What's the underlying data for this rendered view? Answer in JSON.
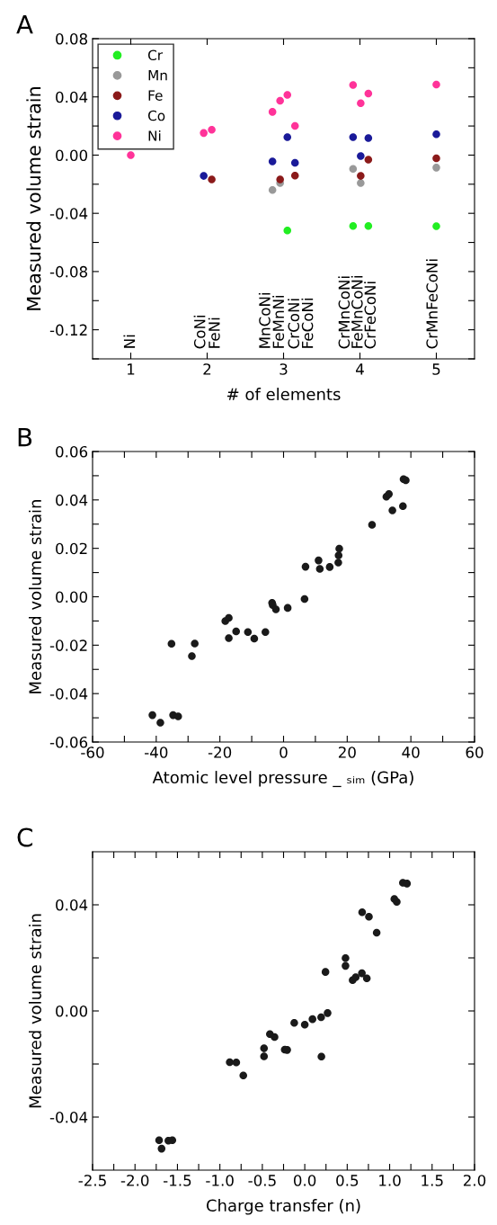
{
  "chart_data": [
    {
      "type": "scatter",
      "title": "A",
      "xlabel": "# of elements",
      "ylabel": "Measured volume strain",
      "marker": "circle",
      "grid": false,
      "legend": "top left",
      "xlim": [
        0.5,
        5.5
      ],
      "xticks": [
        1,
        2,
        3,
        4,
        5
      ],
      "ylim": [
        -0.14,
        0.08
      ],
      "yticks": [
        {
          "value": -0.14,
          "label": null
        },
        {
          "value": -0.12,
          "label": "-0.12"
        },
        {
          "value": -0.1,
          "label": null
        },
        {
          "value": -0.08,
          "label": "-0.08"
        },
        {
          "value": -0.06,
          "label": null
        },
        {
          "value": -0.04,
          "label": "-0.04"
        },
        {
          "value": -0.02,
          "label": null
        },
        {
          "value": 0.0,
          "label": "0.00"
        },
        {
          "value": 0.02,
          "label": null
        },
        {
          "value": 0.04,
          "label": "0.04"
        },
        {
          "value": 0.06,
          "label": null
        },
        {
          "value": 0.08,
          "label": "0.08"
        }
      ],
      "series": [
        {
          "name": "Cr",
          "color": "#22ee22",
          "x": [
            3.05,
            3.91,
            4.11,
            5.0
          ],
          "values": [
            -0.0518,
            -0.0487,
            -0.0487,
            -0.0489
          ]
        },
        {
          "name": "Mn",
          "color": "#999999",
          "x": [
            2.855,
            2.955,
            3.91,
            4.01,
            5.0
          ],
          "values": [
            -0.024,
            -0.0192,
            -0.0095,
            -0.0192,
            -0.0086
          ]
        },
        {
          "name": "Fe",
          "color": "#8b1a1a",
          "x": [
            2.06,
            2.955,
            3.15,
            4.01,
            4.11,
            5.0
          ],
          "values": [
            -0.0167,
            -0.0167,
            -0.0141,
            -0.0143,
            -0.0031,
            -0.0022
          ]
        },
        {
          "name": "Co",
          "color": "#1a1a99",
          "x": [
            1.955,
            2.855,
            3.05,
            3.15,
            3.91,
            4.01,
            4.11,
            5.0
          ],
          "values": [
            -0.0143,
            -0.0044,
            0.0123,
            -0.0053,
            0.0123,
            -0.0007,
            0.0117,
            0.0143
          ]
        },
        {
          "name": "Ni",
          "color": "#ff3399",
          "x": [
            1.0,
            1.955,
            2.06,
            2.855,
            2.955,
            3.05,
            3.15,
            3.91,
            4.01,
            4.11,
            5.0
          ],
          "values": [
            0.0,
            0.0152,
            0.0174,
            0.0297,
            0.0374,
            0.0414,
            0.02,
            0.0482,
            0.0357,
            0.0423,
            0.0485
          ]
        }
      ],
      "annotations": [
        "Ni",
        "CoNi",
        "FeNi",
        "MnCoNi",
        "FeMnNi",
        "CrCoNi",
        "FeCoNi",
        "CrMnCoNi",
        "FeMnCoNi",
        "CrFeCoNi",
        "CrMnFeCoNi"
      ]
    },
    {
      "type": "scatter",
      "title": "B",
      "xlabel": "Atomic level pressure _ ₛᵢₘ (GPa)",
      "ylabel": "Measured volume strain",
      "marker": "circle",
      "grid": false,
      "xlim": [
        -60,
        60
      ],
      "xticks": [
        -60,
        {
          "value": -50,
          "label": null
        },
        -40,
        {
          "value": -30,
          "label": null
        },
        -20,
        {
          "value": -10,
          "label": null
        },
        0,
        {
          "value": 10,
          "label": null
        },
        20,
        {
          "value": 30,
          "label": null
        },
        40,
        {
          "value": 50,
          "label": null
        },
        60
      ],
      "ylim": [
        -0.06,
        0.06
      ],
      "yticks": [
        {
          "value": -0.06,
          "label": "-0.06"
        },
        {
          "value": -0.05,
          "label": null
        },
        {
          "value": -0.04,
          "label": "-0.04"
        },
        {
          "value": -0.03,
          "label": null
        },
        {
          "value": -0.02,
          "label": "-0.02"
        },
        {
          "value": -0.01,
          "label": null
        },
        {
          "value": 0.0,
          "label": "0.00"
        },
        {
          "value": 0.01,
          "label": null
        },
        {
          "value": 0.02,
          "label": "0.02"
        },
        {
          "value": 0.03,
          "label": null
        },
        {
          "value": 0.04,
          "label": "0.04"
        },
        {
          "value": 0.05,
          "label": null
        },
        {
          "value": 0.06,
          "label": "0.06"
        }
      ],
      "series": [
        {
          "color": "#1a1a1a",
          "x": [
            -41.2,
            -38.7,
            -35.2,
            -34.7,
            -33.1,
            -28.8,
            -27.9,
            -18.3,
            -17.2,
            -17.2,
            -14.9,
            -11.2,
            -9.2,
            -5.7,
            -3.6,
            -3.4,
            -2.4,
            1.3,
            6.6,
            6.9,
            11.0,
            11.4,
            14.5,
            17.2,
            17.3,
            17.5,
            27.8,
            32.3,
            33.1,
            34.2,
            37.5,
            37.7,
            38.4
          ],
          "values": [
            -0.0489,
            -0.052,
            -0.0194,
            -0.0489,
            -0.0494,
            -0.0245,
            -0.0193,
            -0.01,
            -0.0087,
            -0.0171,
            -0.0143,
            -0.0146,
            -0.0173,
            -0.0146,
            -0.0025,
            -0.0034,
            -0.0052,
            -0.0046,
            -0.0009,
            0.0124,
            0.015,
            0.0115,
            0.0123,
            0.0141,
            0.0171,
            0.0199,
            0.0297,
            0.0413,
            0.0424,
            0.0357,
            0.0374,
            0.0486,
            0.0481
          ]
        }
      ]
    },
    {
      "type": "scatter",
      "title": "C",
      "xlabel": "Charge transfer (n)",
      "ylabel": "Measured volume strain",
      "marker": "circle",
      "grid": false,
      "xlim": [
        -2.5,
        2.0
      ],
      "xticks": [
        {
          "value": -2.5,
          "label": "-2.5"
        },
        {
          "value": -2.25,
          "label": null
        },
        {
          "value": -2.0,
          "label": "-2.0"
        },
        {
          "value": -1.75,
          "label": null
        },
        {
          "value": -1.5,
          "label": "-1.5"
        },
        {
          "value": -1.25,
          "label": null
        },
        {
          "value": -1.0,
          "label": "-1.0"
        },
        {
          "value": -0.75,
          "label": null
        },
        {
          "value": -0.5,
          "label": "-0.5"
        },
        {
          "value": -0.25,
          "label": null
        },
        {
          "value": 0.0,
          "label": "0.0"
        },
        {
          "value": 0.25,
          "label": null
        },
        {
          "value": 0.5,
          "label": "0.5"
        },
        {
          "value": 0.75,
          "label": null
        },
        {
          "value": 1.0,
          "label": "1.0"
        },
        {
          "value": 1.25,
          "label": null
        },
        {
          "value": 1.5,
          "label": "1.5"
        },
        {
          "value": 1.75,
          "label": null
        },
        {
          "value": 2.0,
          "label": "2.0"
        }
      ],
      "ylim": [
        -0.06,
        0.06
      ],
      "yticks": [
        {
          "value": -0.04,
          "label": "-0.04"
        },
        {
          "value": -0.02,
          "label": null
        },
        {
          "value": 0.0,
          "label": "0.00"
        },
        {
          "value": 0.02,
          "label": null
        },
        {
          "value": 0.04,
          "label": "0.04"
        }
      ],
      "series": [
        {
          "color": "#1a1a1a",
          "x": [
            -1.716,
            -1.687,
            -1.607,
            -1.56,
            -0.884,
            -0.807,
            -0.724,
            -0.48,
            -0.48,
            -0.411,
            -0.356,
            -0.236,
            -0.207,
            -0.124,
            0.0,
            0.091,
            0.193,
            0.196,
            0.269,
            0.244,
            0.48,
            0.48,
            0.564,
            0.6,
            0.673,
            0.731,
            0.676,
            0.756,
            0.847,
            1.055,
            1.084,
            1.156,
            1.204
          ],
          "values": [
            -0.0487,
            -0.0519,
            -0.0489,
            -0.0487,
            -0.0193,
            -0.0194,
            -0.0243,
            -0.0141,
            -0.0171,
            -0.0087,
            -0.0098,
            -0.0146,
            -0.0147,
            -0.0045,
            -0.0052,
            -0.0031,
            -0.0024,
            -0.0172,
            -0.0008,
            0.0147,
            0.0199,
            0.017,
            0.0116,
            0.0127,
            0.0142,
            0.0123,
            0.0372,
            0.0355,
            0.0295,
            0.0422,
            0.0411,
            0.0483,
            0.048
          ]
        }
      ]
    }
  ]
}
